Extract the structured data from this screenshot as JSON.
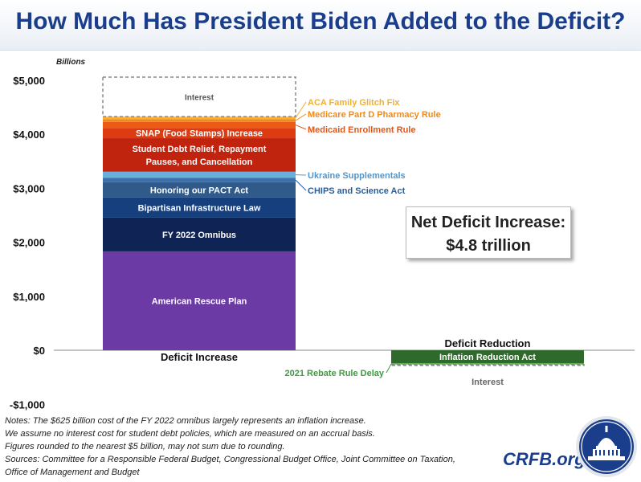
{
  "title": "How Much Has President Biden Added to the Deficit?",
  "chart_data": {
    "type": "bar",
    "stacked": true,
    "ylabel": "Billions",
    "ylim": [
      -1000,
      5000
    ],
    "y_ticks": [
      -1000,
      0,
      1000,
      2000,
      3000,
      4000,
      5000
    ],
    "y_tick_labels": [
      "-$1,000",
      "$0",
      "$1,000",
      "$2,000",
      "$3,000",
      "$4,000",
      "$5,000"
    ],
    "grid": false,
    "categories": [
      "Deficit Increase",
      "Deficit Reduction"
    ],
    "series": [
      {
        "name": "American Rescue Plan",
        "category": "Deficit Increase",
        "value": 1830,
        "color": "#6b3aa4",
        "label_inside": true,
        "label_color": "#ffffff"
      },
      {
        "name": "FY 2022 Omnibus",
        "category": "Deficit Increase",
        "value": 625,
        "color": "#0f2355",
        "label_inside": true,
        "label_color": "#ffffff"
      },
      {
        "name": "Bipartisan Infrastructure Law",
        "category": "Deficit Increase",
        "value": 375,
        "color": "#163f7e",
        "label_inside": true,
        "label_color": "#ffffff"
      },
      {
        "name": "Honoring our PACT Act",
        "category": "Deficit Increase",
        "value": 280,
        "color": "#2f5a8a",
        "label_inside": true,
        "label_color": "#ffffff"
      },
      {
        "name": "CHIPS and Science Act",
        "category": "Deficit Increase",
        "value": 80,
        "color": "#3d6fa8",
        "label_inside": false,
        "callout_color": "#2a5c9a"
      },
      {
        "name": "Ukraine Supplementals",
        "category": "Deficit Increase",
        "value": 115,
        "color": "#6aaedc",
        "label_inside": false,
        "callout_color": "#5595c8"
      },
      {
        "name": "Student Debt Relief, Repayment Pauses, and Cancellation",
        "category": "Deficit Increase",
        "value": 620,
        "color": "#c0230e",
        "label_inside": true,
        "label_lines": [
          "Student Debt Relief, Repayment",
          "Pauses, and Cancellation"
        ],
        "label_color": "#ffffff"
      },
      {
        "name": "SNAP (Food Stamps) Increase",
        "category": "Deficit Increase",
        "value": 190,
        "color": "#dd3b12",
        "label_inside": true,
        "label_color": "#ffffff"
      },
      {
        "name": "Medicaid Enrollment Rule",
        "category": "Deficit Increase",
        "value": 110,
        "color": "#ea5a18",
        "label_inside": false,
        "callout_color": "#e0561a"
      },
      {
        "name": "Medicare Part D Pharmacy Rule",
        "category": "Deficit Increase",
        "value": 55,
        "color": "#f08a1e",
        "label_inside": false,
        "callout_color": "#ef8a1c"
      },
      {
        "name": "ACA Family Glitch Fix",
        "category": "Deficit Increase",
        "value": 45,
        "color": "#f6b431",
        "label_inside": false,
        "callout_color": "#f0b030"
      },
      {
        "name": "Interest",
        "category": "Deficit Increase",
        "value": 730,
        "color": "#ffffff",
        "dashed": true,
        "label_inside": true,
        "label_color": "#555555"
      },
      {
        "name": "Inflation Reduction Act",
        "category": "Deficit Reduction",
        "value": -240,
        "color": "#2e6a2b",
        "label_inside": true,
        "label_color": "#ffffff"
      },
      {
        "name": "2021 Rebate Rule Delay",
        "category": "Deficit Reduction",
        "value": -25,
        "color": "#5aa64a",
        "label_inside": false,
        "callout_color": "#3f9a3f"
      },
      {
        "name": "Interest",
        "category": "Deficit Reduction",
        "value": -10,
        "color": "#ffffff",
        "dashed": true,
        "label_inside": false,
        "callout_color": "#666666"
      }
    ]
  },
  "annotation": {
    "line1": "Net Deficit Increase:",
    "line2": "$4.8 trillion"
  },
  "notes": [
    "Notes: The $625 billion cost of the FY 2022 omnibus largely represents an inflation increase.",
    "We assume no interest cost for student debt policies, which are measured on an accrual basis.",
    "Figures rounded to the nearest $5 billion, may not sum due to rounding.",
    "Sources: Committee for a Responsible Federal Budget, Congressional Budget Office, Joint Committee on Taxation,",
    "Office of Management and Budget"
  ],
  "brand": "CRFB.org",
  "logo_icon": "capitol-dome-icon"
}
